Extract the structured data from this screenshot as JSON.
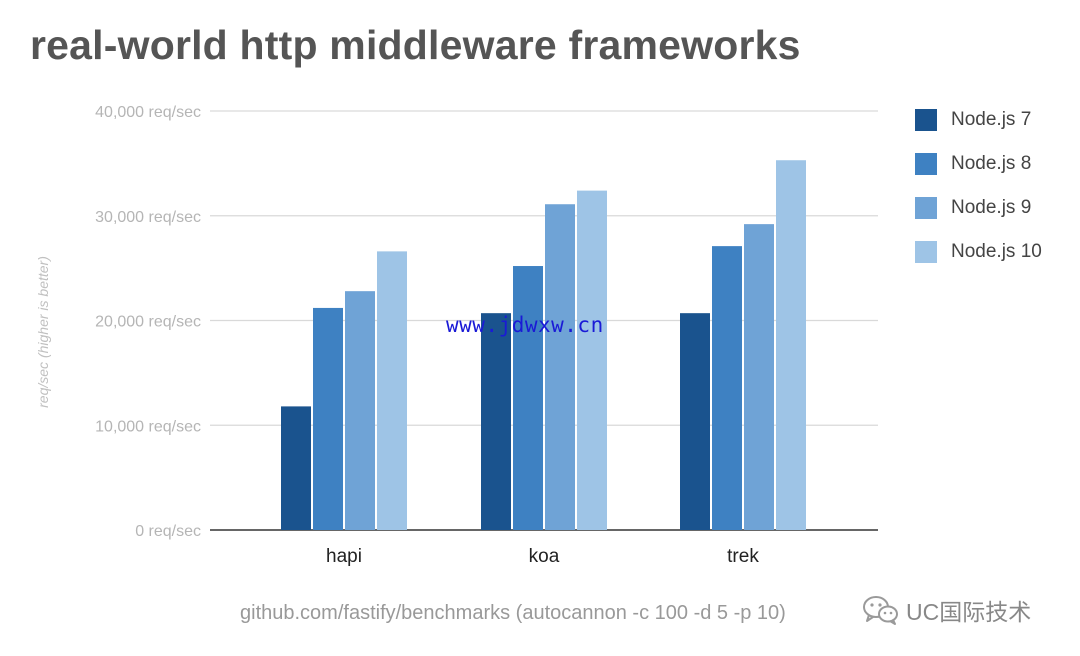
{
  "chart_data": {
    "type": "bar",
    "title": "real-world http middleware frameworks",
    "categories": [
      "hapi",
      "koa",
      "trek"
    ],
    "series": [
      {
        "name": "Node.js 7",
        "color": "#1a538e",
        "values": [
          11800,
          20700,
          20700
        ]
      },
      {
        "name": "Node.js 8",
        "color": "#3e81c2",
        "values": [
          21200,
          25200,
          27100
        ]
      },
      {
        "name": "Node.js 9",
        "color": "#6fa3d6",
        "values": [
          22800,
          31100,
          29200
        ]
      },
      {
        "name": "Node.js 10",
        "color": "#9ec4e6",
        "values": [
          26600,
          32400,
          35300
        ]
      }
    ],
    "ylabel": "req/sec (higher is better)",
    "xlabel": "",
    "ylim": [
      0,
      40000
    ],
    "yticks": [
      0,
      10000,
      20000,
      30000,
      40000
    ],
    "ytick_labels": [
      "0 req/sec",
      "10,000 req/sec",
      "20,000 req/sec",
      "30,000 req/sec",
      "40,000 req/sec"
    ],
    "grid": true,
    "legend_position": "right"
  },
  "watermark": "www.jdwxw.cn",
  "source_note": "github.com/fastify/benchmarks (autocannon -c 100 -d 5 -p 10)",
  "brand": {
    "text": "UC国际技术",
    "icon": "wechat-icon"
  },
  "colors": {
    "title": "#555555",
    "gridline": "#d9d9d9",
    "axis": "#333333",
    "watermark": "#1a1ad6"
  }
}
